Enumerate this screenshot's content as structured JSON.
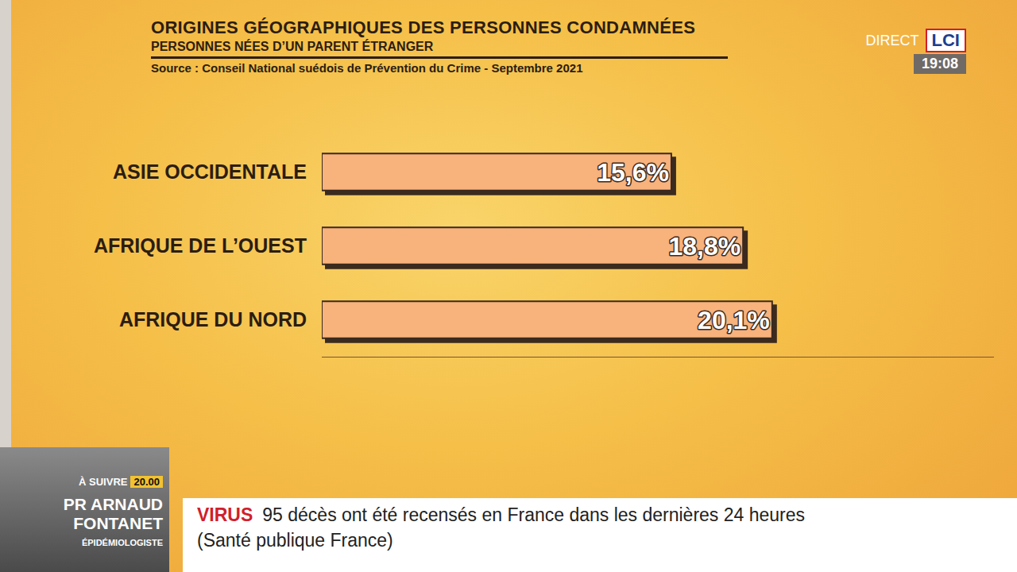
{
  "chart_data": {
    "type": "bar",
    "title": "ORIGINES GÉOGRAPHIQUES DES PERSONNES CONDAMNÉES",
    "subtitle": "PERSONNES NÉES D’UN PARENT ÉTRANGER",
    "annotations": [
      "Source : Conseil National suédois de Prévention du Crime - Septembre 2021"
    ],
    "categories": [
      "ASIE OCCIDENTALE",
      "AFRIQUE DE L’OUEST",
      "AFRIQUE DU NORD"
    ],
    "values": [
      15.6,
      18.8,
      20.1
    ],
    "value_labels": [
      "15,6%",
      "18,8%",
      "20,1%"
    ],
    "color": "#f8b27c",
    "orientation": "horizontal",
    "data_labels": true,
    "tick_labels": "y",
    "grid": false,
    "xlim": [
      0,
      30
    ]
  },
  "broadcast": {
    "live": "DIRECT",
    "channel": "LCI",
    "time": "19:08",
    "ticker_topic": "VIRUS",
    "ticker_text": "95 décès ont été recensés en France dans les dernières 24 heures",
    "ticker_source": "(Santé publique France)",
    "next_label": "À SUIVRE",
    "next_time": "20.00",
    "next_name": "PR ARNAUD FONTANET",
    "next_role": "ÉPIDÉMIOLOGISTE"
  }
}
